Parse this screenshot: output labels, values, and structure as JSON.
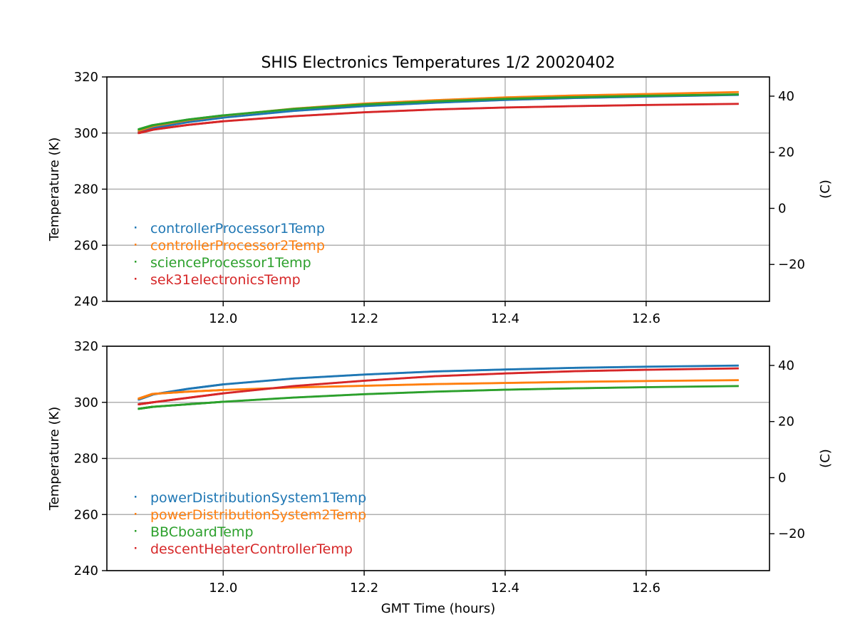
{
  "title": "SHIS Electronics Temperatures 1/2 20020402",
  "colors": {
    "blue": "#1f77b4",
    "orange": "#ff7f0e",
    "green": "#2ca02c",
    "red": "#d62728",
    "grid": "#b0b0b0",
    "axis": "#000000"
  },
  "chart_data": [
    {
      "type": "scatter",
      "xlabel": "",
      "ylabel": "Temperature (K)",
      "y2label": "(C)",
      "xlim": [
        11.835,
        12.775
      ],
      "ylim": [
        240,
        320
      ],
      "y2lim": [
        -33.15,
        46.85
      ],
      "xticks": [
        12.0,
        12.2,
        12.4,
        12.6
      ],
      "xtick_labels": [
        "12.0",
        "12.2",
        "12.4",
        "12.6"
      ],
      "yticks": [
        240,
        260,
        280,
        300,
        320
      ],
      "ytick_labels": [
        "240",
        "260",
        "280",
        "300",
        "320"
      ],
      "y2ticks": [
        -20,
        0,
        20,
        40
      ],
      "y2tick_labels": [
        "−20",
        "0",
        "20",
        "40"
      ],
      "grid": true,
      "legend_location": "lower-left",
      "series": [
        {
          "name": "controllerProcessor1Temp",
          "color": "#1f77b4",
          "x": [
            11.88,
            11.9,
            11.95,
            12.0,
            12.1,
            12.2,
            12.3,
            12.4,
            12.5,
            12.6,
            12.73
          ],
          "y": [
            300.3,
            301.8,
            303.9,
            305.5,
            307.9,
            309.6,
            310.8,
            311.8,
            312.5,
            313.0,
            313.6
          ]
        },
        {
          "name": "controllerProcessor2Temp",
          "color": "#ff7f0e",
          "x": [
            11.88,
            11.9,
            11.95,
            12.0,
            12.1,
            12.2,
            12.3,
            12.4,
            12.5,
            12.6,
            12.73
          ],
          "y": [
            300.9,
            302.5,
            304.6,
            306.2,
            308.7,
            310.5,
            311.7,
            312.7,
            313.4,
            313.9,
            314.6
          ]
        },
        {
          "name": "scienceProcessor1Temp",
          "color": "#2ca02c",
          "x": [
            11.88,
            11.9,
            11.95,
            12.0,
            12.1,
            12.2,
            12.3,
            12.4,
            12.5,
            12.6,
            12.73
          ],
          "y": [
            301.3,
            302.8,
            304.8,
            306.3,
            308.6,
            310.2,
            311.3,
            312.2,
            312.8,
            313.3,
            313.8
          ]
        },
        {
          "name": "sek31electronicsTemp",
          "color": "#d62728",
          "x": [
            11.88,
            11.9,
            11.95,
            12.0,
            12.1,
            12.2,
            12.3,
            12.4,
            12.5,
            12.6,
            12.73
          ],
          "y": [
            300.0,
            301.2,
            302.9,
            304.2,
            306.0,
            307.4,
            308.4,
            309.1,
            309.6,
            310.0,
            310.4
          ]
        }
      ]
    },
    {
      "type": "scatter",
      "xlabel": "GMT Time (hours)",
      "ylabel": "Temperature (K)",
      "y2label": "(C)",
      "xlim": [
        11.835,
        12.775
      ],
      "ylim": [
        240,
        320
      ],
      "y2lim": [
        -33.15,
        46.85
      ],
      "xticks": [
        12.0,
        12.2,
        12.4,
        12.6
      ],
      "xtick_labels": [
        "12.0",
        "12.2",
        "12.4",
        "12.6"
      ],
      "yticks": [
        240,
        260,
        280,
        300,
        320
      ],
      "ytick_labels": [
        "240",
        "260",
        "280",
        "300",
        "320"
      ],
      "y2ticks": [
        -20,
        0,
        20,
        40
      ],
      "y2tick_labels": [
        "−20",
        "0",
        "20",
        "40"
      ],
      "grid": true,
      "legend_location": "lower-left",
      "series": [
        {
          "name": "powerDistributionSystem1Temp",
          "color": "#1f77b4",
          "x": [
            11.88,
            11.9,
            11.95,
            12.0,
            12.1,
            12.2,
            12.3,
            12.4,
            12.5,
            12.6,
            12.73
          ],
          "y": [
            301.0,
            302.8,
            304.8,
            306.4,
            308.5,
            309.9,
            311.0,
            311.7,
            312.3,
            312.7,
            313.1
          ]
        },
        {
          "name": "powerDistributionSystem2Temp",
          "color": "#ff7f0e",
          "x": [
            11.88,
            11.9,
            11.95,
            12.0,
            12.1,
            12.2,
            12.3,
            12.4,
            12.5,
            12.6,
            12.73
          ],
          "y": [
            301.3,
            303.0,
            303.8,
            304.4,
            305.3,
            305.9,
            306.5,
            306.9,
            307.3,
            307.6,
            307.9
          ]
        },
        {
          "name": "BBCboardTemp",
          "color": "#2ca02c",
          "x": [
            11.88,
            11.9,
            11.95,
            12.0,
            12.1,
            12.2,
            12.3,
            12.4,
            12.5,
            12.6,
            12.73
          ],
          "y": [
            297.7,
            298.4,
            299.3,
            300.2,
            301.7,
            302.9,
            303.8,
            304.5,
            305.0,
            305.4,
            305.8
          ]
        },
        {
          "name": "descentHeaterControllerTemp",
          "color": "#d62728",
          "x": [
            11.88,
            11.9,
            11.95,
            12.0,
            12.1,
            12.2,
            12.3,
            12.4,
            12.5,
            12.6,
            12.73
          ],
          "y": [
            299.3,
            300.0,
            301.6,
            303.2,
            305.8,
            307.7,
            309.3,
            310.3,
            311.1,
            311.6,
            312.1
          ]
        }
      ]
    }
  ]
}
